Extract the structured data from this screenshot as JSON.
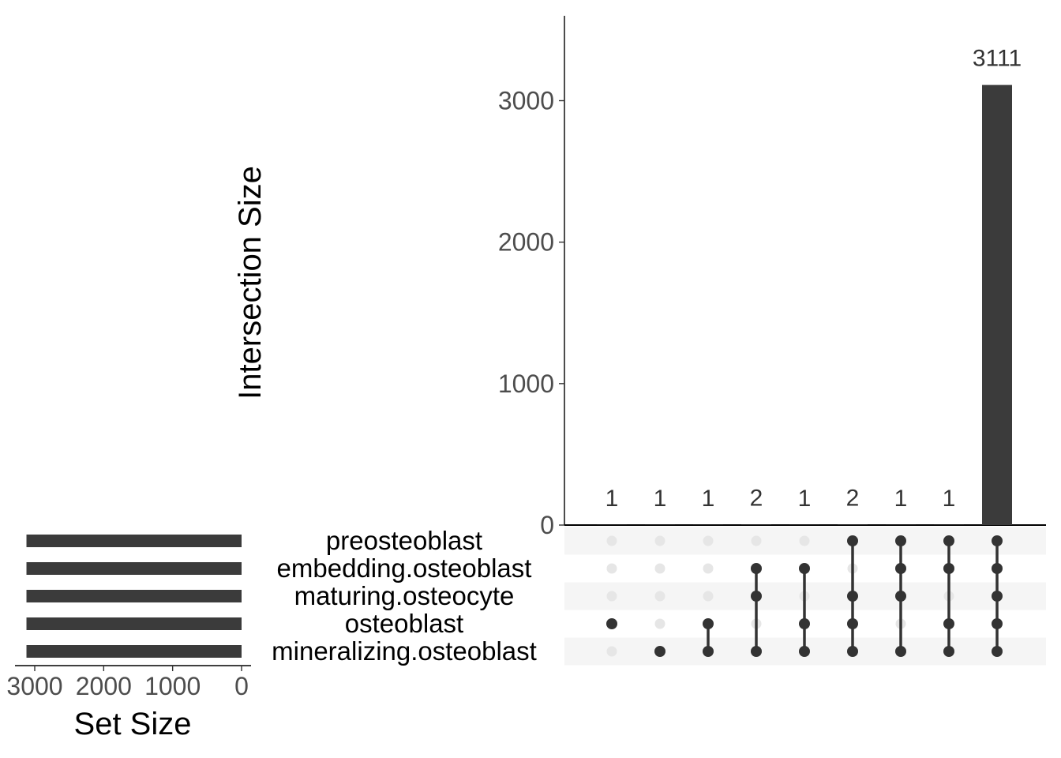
{
  "chart_data": {
    "type": "bar",
    "subtype": "upset",
    "intersection_axis": {
      "title": "Intersection Size",
      "ylim": [
        0,
        3600
      ],
      "ticks": [
        0,
        1000,
        2000,
        3000
      ]
    },
    "set_size_axis": {
      "title": "Set Size",
      "xlim": [
        3150,
        0
      ],
      "ticks": [
        3000,
        2000,
        1000,
        0
      ],
      "direction": "reversed"
    },
    "sets": [
      {
        "name": "preosteoblast",
        "size": 3120
      },
      {
        "name": "embedding.osteoblast",
        "size": 3120
      },
      {
        "name": "maturing.osteocyte",
        "size": 3120
      },
      {
        "name": "osteoblast",
        "size": 3120
      },
      {
        "name": "mineralizing.osteoblast",
        "size": 3120
      }
    ],
    "intersections": [
      {
        "sets": [
          "osteoblast"
        ],
        "size": 1,
        "label": "1"
      },
      {
        "sets": [
          "mineralizing.osteoblast"
        ],
        "size": 1,
        "label": "1"
      },
      {
        "sets": [
          "osteoblast",
          "mineralizing.osteoblast"
        ],
        "size": 1,
        "label": "1"
      },
      {
        "sets": [
          "embedding.osteoblast",
          "maturing.osteocyte",
          "mineralizing.osteoblast"
        ],
        "size": 2,
        "label": "2"
      },
      {
        "sets": [
          "embedding.osteoblast",
          "osteoblast",
          "mineralizing.osteoblast"
        ],
        "size": 1,
        "label": "1"
      },
      {
        "sets": [
          "preosteoblast",
          "maturing.osteocyte",
          "osteoblast",
          "mineralizing.osteoblast"
        ],
        "size": 2,
        "label": "2"
      },
      {
        "sets": [
          "preosteoblast",
          "embedding.osteoblast",
          "maturing.osteocyte",
          "mineralizing.osteoblast"
        ],
        "size": 1,
        "label": "1"
      },
      {
        "sets": [
          "preosteoblast",
          "embedding.osteoblast",
          "osteoblast",
          "mineralizing.osteoblast"
        ],
        "size": 1,
        "label": "1"
      },
      {
        "sets": [
          "preosteoblast",
          "embedding.osteoblast",
          "maturing.osteocyte",
          "osteoblast",
          "mineralizing.osteoblast"
        ],
        "size": 3111,
        "label": "3111"
      }
    ],
    "colors": {
      "bar": "#3b3b3b",
      "dot_active": "#333333",
      "dot_inactive": "#e6e6e6",
      "stripe": "#f5f5f5",
      "axis": "#000000",
      "tick_text": "#4d4d4d"
    }
  }
}
